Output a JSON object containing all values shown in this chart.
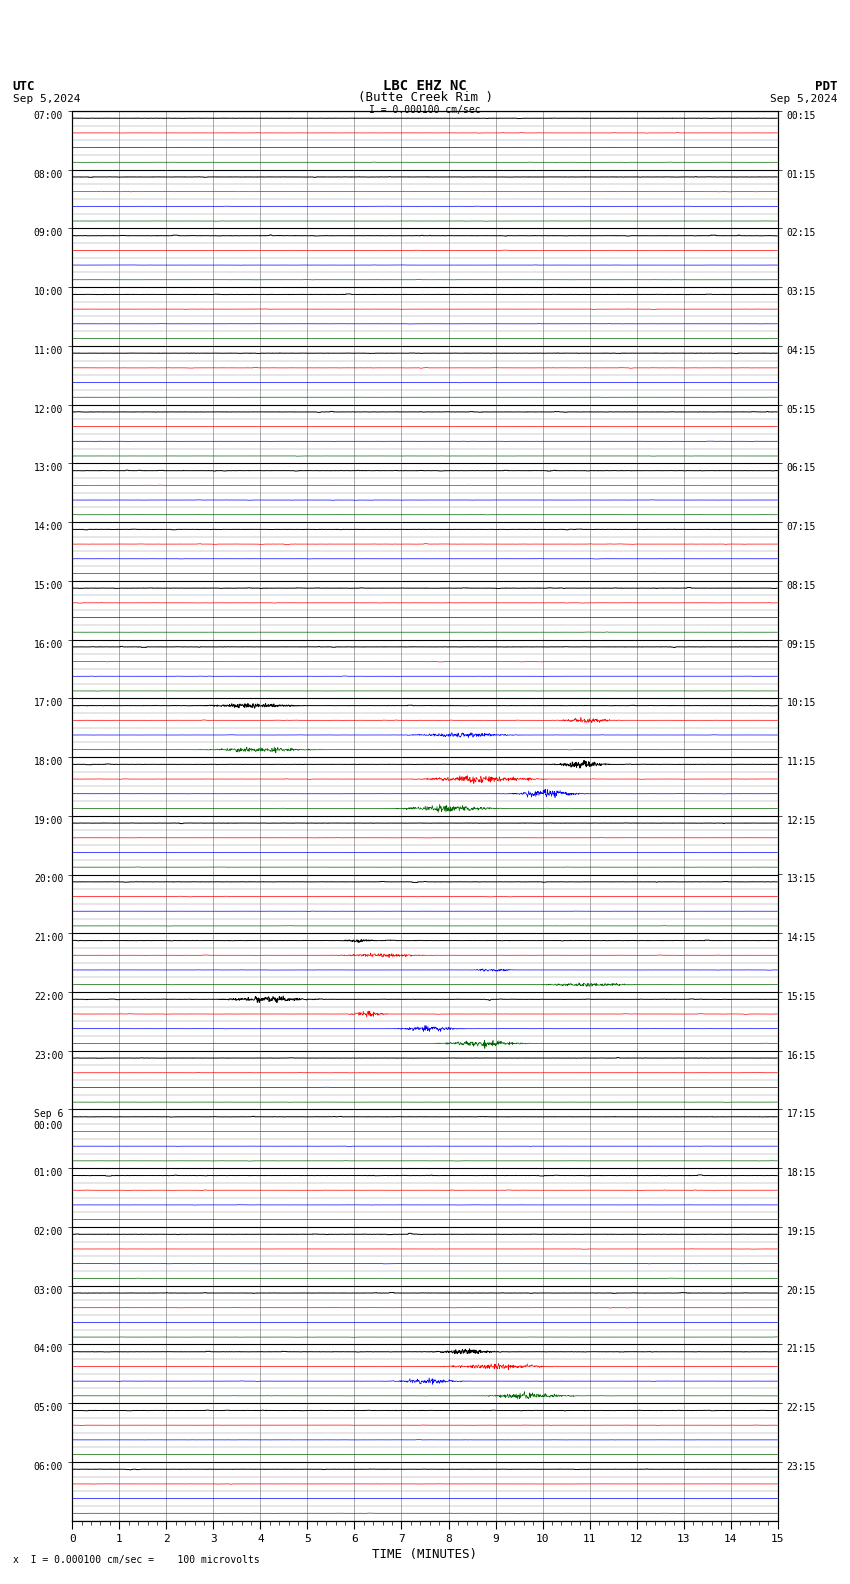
{
  "title_line1": "LBC EHZ NC",
  "title_line2": "(Butte Creek Rim )",
  "scale_label": "= 0.000100 cm/sec",
  "utc_label": "UTC",
  "utc_date": "Sep 5,2024",
  "pdt_label": "PDT",
  "pdt_date": "Sep 5,2024",
  "bottom_label": "= 0.000100 cm/sec =    100 microvolts",
  "xlabel": "TIME (MINUTES)",
  "bg_color": "#ffffff",
  "trace_colors": [
    "#000000",
    "#ff0000",
    "#0000ff",
    "#006600"
  ],
  "utc_times": [
    "07:00",
    "08:00",
    "09:00",
    "10:00",
    "11:00",
    "12:00",
    "13:00",
    "14:00",
    "15:00",
    "16:00",
    "17:00",
    "18:00",
    "19:00",
    "20:00",
    "21:00",
    "22:00",
    "23:00",
    "Sep 6\n00:00",
    "01:00",
    "02:00",
    "03:00",
    "04:00",
    "05:00",
    "06:00"
  ],
  "pdt_times": [
    "00:15",
    "01:15",
    "02:15",
    "03:15",
    "04:15",
    "05:15",
    "06:15",
    "07:15",
    "08:15",
    "09:15",
    "10:15",
    "11:15",
    "12:15",
    "13:15",
    "14:15",
    "15:15",
    "16:15",
    "17:15",
    "18:15",
    "19:15",
    "20:15",
    "21:15",
    "22:15",
    "23:15"
  ],
  "n_hours": 24,
  "n_traces_per_hour": 4,
  "x_min": 0,
  "x_max": 15,
  "noise_amplitude": [
    0.015,
    0.008,
    0.006,
    0.005
  ],
  "event_hours": [
    10,
    11,
    14,
    15,
    21
  ],
  "event_amplitudes": [
    0.08,
    0.12,
    0.06,
    0.1,
    0.09
  ]
}
